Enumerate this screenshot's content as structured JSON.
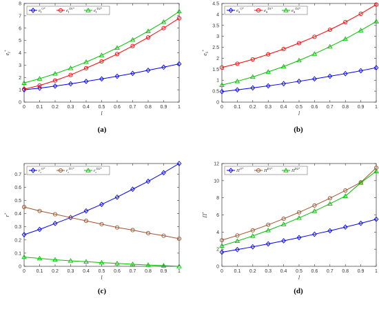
{
  "chart_data": [
    {
      "type": "line",
      "panel_label": "(a)",
      "xlabel": "l",
      "ylabel": "e_I^*",
      "xlim": [
        0,
        1
      ],
      "ylim": [
        0,
        8
      ],
      "x_ticks": [
        "0",
        "0.1",
        "0.2",
        "0.3",
        "0.4",
        "0.5",
        "0.6",
        "0.7",
        "0.8",
        "0.9",
        "1"
      ],
      "y_ticks": [
        "0",
        "1",
        "2",
        "3",
        "4",
        "5",
        "6",
        "7",
        "8"
      ],
      "legend_position": "top-left",
      "grid": false,
      "x": [
        0,
        0.1,
        0.2,
        0.3,
        0.4,
        0.5,
        0.6,
        0.7,
        0.8,
        0.9,
        1
      ],
      "series": [
        {
          "name": "e_I^{O*}",
          "color": "#0000ff",
          "marker": "diamond",
          "values": [
            1.0,
            1.13,
            1.3,
            1.48,
            1.68,
            1.88,
            2.1,
            2.33,
            2.58,
            2.83,
            3.1
          ]
        },
        {
          "name": "e_I^{D1*}",
          "color": "#ff0000",
          "marker": "circle",
          "values": [
            1.05,
            1.35,
            1.75,
            2.2,
            2.75,
            3.3,
            3.9,
            4.55,
            5.25,
            6.0,
            6.8
          ]
        },
        {
          "name": "e_I^{D2*}",
          "color": "#00c000",
          "marker": "triangle",
          "values": [
            1.55,
            1.9,
            2.3,
            2.75,
            3.25,
            3.8,
            4.4,
            5.05,
            5.75,
            6.5,
            7.35
          ]
        }
      ]
    },
    {
      "type": "line",
      "panel_label": "(b)",
      "xlabel": "l",
      "ylabel": "e_S^*",
      "xlim": [
        0,
        1
      ],
      "ylim": [
        0,
        4.5
      ],
      "x_ticks": [
        "0",
        "0.1",
        "0.2",
        "0.3",
        "0.4",
        "0.5",
        "0.6",
        "0.7",
        "0.8",
        "0.9",
        "1"
      ],
      "y_ticks": [
        "0",
        "0.5",
        "1",
        "1.5",
        "2",
        "2.5",
        "3",
        "3.5",
        "4",
        "4.5"
      ],
      "legend_position": "top-left",
      "grid": false,
      "x": [
        0,
        0.1,
        0.2,
        0.3,
        0.4,
        0.5,
        0.6,
        0.7,
        0.8,
        0.9,
        1
      ],
      "series": [
        {
          "name": "e_S^{O*}",
          "color": "#0000ff",
          "marker": "diamond",
          "values": [
            0.48,
            0.56,
            0.65,
            0.74,
            0.84,
            0.95,
            1.06,
            1.18,
            1.3,
            1.43,
            1.57
          ]
        },
        {
          "name": "e_S^{D1*}",
          "color": "#ff0000",
          "marker": "circle",
          "values": [
            1.58,
            1.75,
            1.95,
            2.18,
            2.42,
            2.69,
            2.98,
            3.3,
            3.65,
            4.03,
            4.45
          ]
        },
        {
          "name": "e_S^{D2*}",
          "color": "#00c000",
          "marker": "triangle",
          "values": [
            0.78,
            0.95,
            1.15,
            1.38,
            1.62,
            1.9,
            2.2,
            2.53,
            2.88,
            3.27,
            3.68
          ]
        }
      ]
    },
    {
      "type": "line",
      "panel_label": "(c)",
      "xlabel": "l",
      "ylabel": "r^*",
      "xlim": [
        0,
        1
      ],
      "ylim": [
        0,
        0.78
      ],
      "x_ticks": [
        "0",
        "0.1",
        "0.2",
        "0.3",
        "0.4",
        "0.5",
        "0.6",
        "0.7",
        "0.8",
        "0.9",
        "1"
      ],
      "y_ticks": [
        "0",
        "0.1",
        "0.2",
        "0.3",
        "0.4",
        "0.5",
        "0.6",
        "0.7"
      ],
      "legend_position": "top-left",
      "grid": false,
      "x": [
        0,
        0.1,
        0.2,
        0.3,
        0.4,
        0.5,
        0.6,
        0.7,
        0.8,
        0.9,
        1
      ],
      "series": [
        {
          "name": "r_r^{O*}",
          "color": "#0000ff",
          "marker": "diamond",
          "values": [
            0.24,
            0.28,
            0.325,
            0.37,
            0.42,
            0.47,
            0.525,
            0.585,
            0.645,
            0.71,
            0.78
          ]
        },
        {
          "name": "r_r^{D1*}",
          "color": "#a0522d",
          "marker": "circle",
          "values": [
            0.45,
            0.42,
            0.395,
            0.37,
            0.345,
            0.32,
            0.295,
            0.275,
            0.252,
            0.232,
            0.21
          ]
        },
        {
          "name": "r_r^{D2*}",
          "color": "#00c000",
          "marker": "triangle",
          "values": [
            0.07,
            0.06,
            0.05,
            0.042,
            0.035,
            0.028,
            0.022,
            0.016,
            0.01,
            0.005,
            0.0
          ]
        }
      ]
    },
    {
      "type": "line",
      "panel_label": "(d)",
      "xlabel": "l",
      "ylabel": "Π^*",
      "xlim": [
        0,
        1
      ],
      "ylim": [
        0,
        12
      ],
      "x_ticks": [
        "0",
        "0.1",
        "0.2",
        "0.3",
        "0.4",
        "0.5",
        "0.6",
        "0.7",
        "0.8",
        "0.9",
        "1"
      ],
      "y_ticks": [
        "0",
        "2",
        "4",
        "6",
        "8",
        "10",
        "12"
      ],
      "legend_position": "top-left",
      "grid": false,
      "x": [
        0,
        0.1,
        0.2,
        0.3,
        0.4,
        0.5,
        0.6,
        0.7,
        0.8,
        0.9,
        1
      ],
      "series": [
        {
          "name": "Π^{O*}",
          "color": "#0000ff",
          "marker": "diamond",
          "values": [
            1.65,
            1.95,
            2.28,
            2.62,
            2.98,
            3.35,
            3.75,
            4.15,
            4.58,
            5.02,
            5.5
          ]
        },
        {
          "name": "Π^{D1*}",
          "color": "#a0522d",
          "marker": "circle",
          "values": [
            3.05,
            3.6,
            4.2,
            4.85,
            5.55,
            6.3,
            7.1,
            7.95,
            8.85,
            9.8,
            11.5
          ]
        },
        {
          "name": "Π^{D2*}",
          "color": "#00c000",
          "marker": "triangle",
          "values": [
            2.4,
            2.95,
            3.55,
            4.2,
            4.9,
            5.65,
            6.45,
            7.3,
            8.2,
            9.75,
            11.1
          ]
        }
      ]
    }
  ]
}
